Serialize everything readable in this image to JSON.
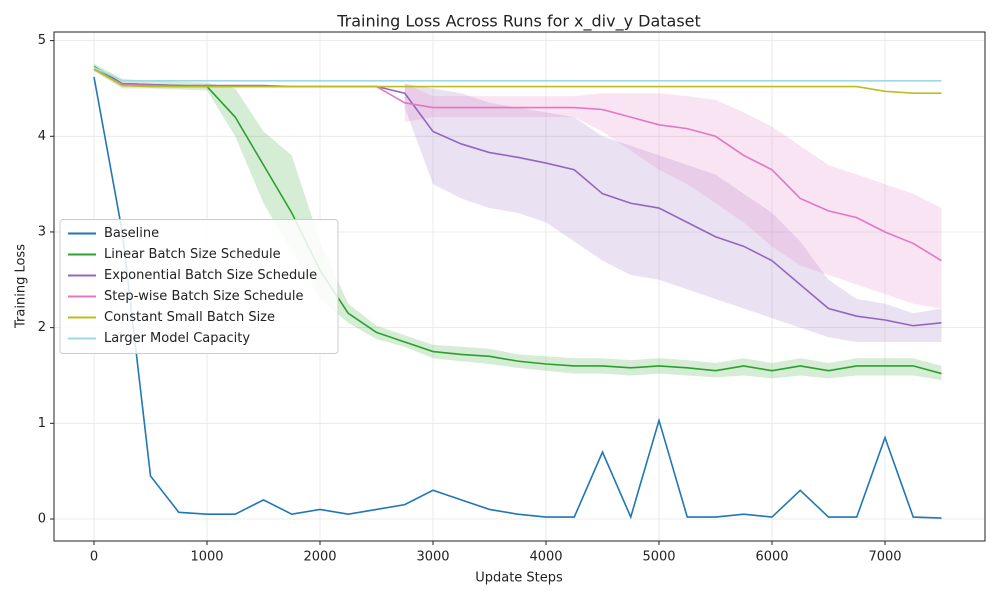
{
  "chart_data": {
    "type": "line",
    "title": "Training Loss Across Runs for x_div_y Dataset",
    "xlabel": "Update Steps",
    "ylabel": "Training Loss",
    "x": [
      0,
      250,
      500,
      750,
      1000,
      1250,
      1500,
      1750,
      2000,
      2250,
      2500,
      2750,
      3000,
      3250,
      3500,
      3750,
      4000,
      4250,
      4500,
      4750,
      5000,
      5250,
      5500,
      5750,
      6000,
      6250,
      6500,
      6750,
      7000,
      7250,
      7500
    ],
    "xlim": [
      -354,
      7885
    ],
    "ylim": [
      -0.23,
      5.09
    ],
    "xticks": [
      0,
      1000,
      2000,
      3000,
      4000,
      5000,
      6000,
      7000
    ],
    "yticks": [
      0,
      1,
      2,
      3,
      4,
      5
    ],
    "grid": true,
    "legend": "center left",
    "series": [
      {
        "name": "Baseline",
        "color": "#1f77b4",
        "values": [
          4.62,
          3.0,
          0.45,
          0.07,
          0.05,
          0.05,
          0.2,
          0.05,
          0.1,
          0.05,
          0.1,
          0.15,
          0.3,
          0.2,
          0.1,
          0.05,
          0.02,
          0.02,
          0.7,
          0.02,
          1.03,
          0.02,
          0.02,
          0.05,
          0.02,
          0.3,
          0.02,
          0.02,
          0.85,
          0.02,
          0.01
        ]
      },
      {
        "name": "Linear Batch Size Schedule",
        "color": "#2ca02c",
        "values": [
          4.73,
          4.55,
          4.54,
          4.53,
          4.52,
          4.2,
          3.7,
          3.2,
          2.6,
          2.15,
          1.95,
          1.85,
          1.75,
          1.72,
          1.7,
          1.65,
          1.62,
          1.6,
          1.6,
          1.58,
          1.6,
          1.58,
          1.55,
          1.6,
          1.55,
          1.6,
          1.55,
          1.6,
          1.6,
          1.6,
          1.52
        ],
        "lower": [
          4.68,
          4.5,
          4.5,
          4.49,
          4.48,
          4.0,
          3.3,
          2.8,
          2.3,
          2.05,
          1.88,
          1.8,
          1.68,
          1.65,
          1.62,
          1.58,
          1.55,
          1.52,
          1.52,
          1.5,
          1.52,
          1.5,
          1.48,
          1.5,
          1.47,
          1.5,
          1.47,
          1.5,
          1.5,
          1.5,
          1.45
        ],
        "upper": [
          4.76,
          4.6,
          4.58,
          4.57,
          4.56,
          4.5,
          4.05,
          3.8,
          2.9,
          2.25,
          2.02,
          1.92,
          1.82,
          1.8,
          1.78,
          1.72,
          1.7,
          1.68,
          1.68,
          1.66,
          1.68,
          1.66,
          1.63,
          1.68,
          1.63,
          1.68,
          1.63,
          1.68,
          1.68,
          1.68,
          1.6
        ]
      },
      {
        "name": "Exponential Batch Size Schedule",
        "color": "#9467bd",
        "values": [
          4.7,
          4.55,
          4.54,
          4.53,
          4.53,
          4.53,
          4.53,
          4.52,
          4.52,
          4.52,
          4.52,
          4.45,
          4.05,
          3.92,
          3.83,
          3.78,
          3.72,
          3.65,
          3.4,
          3.3,
          3.25,
          3.1,
          2.95,
          2.85,
          2.7,
          2.45,
          2.2,
          2.12,
          2.08,
          2.02,
          2.05
        ],
        "lower": [
          null,
          null,
          null,
          null,
          null,
          null,
          null,
          null,
          null,
          null,
          null,
          4.3,
          3.5,
          3.35,
          3.25,
          3.2,
          3.1,
          2.9,
          2.7,
          2.55,
          2.5,
          2.4,
          2.3,
          2.2,
          2.1,
          2.0,
          1.9,
          1.85,
          1.85,
          1.85,
          1.85
        ],
        "upper": [
          null,
          null,
          null,
          null,
          null,
          null,
          null,
          null,
          null,
          null,
          null,
          4.55,
          4.5,
          4.45,
          4.35,
          4.3,
          4.25,
          4.2,
          4.0,
          3.9,
          3.8,
          3.7,
          3.6,
          3.4,
          3.2,
          2.9,
          2.5,
          2.3,
          2.25,
          2.15,
          2.2
        ]
      },
      {
        "name": "Step-wise Batch Size Schedule",
        "color": "#e377c2",
        "values": [
          4.7,
          4.54,
          4.53,
          4.52,
          4.52,
          4.52,
          4.52,
          4.52,
          4.52,
          4.52,
          4.52,
          4.35,
          4.3,
          4.3,
          4.3,
          4.3,
          4.3,
          4.3,
          4.28,
          4.2,
          4.12,
          4.08,
          4.0,
          3.8,
          3.65,
          3.35,
          3.22,
          3.15,
          3.0,
          2.88,
          2.7
        ],
        "lower": [
          null,
          null,
          null,
          null,
          null,
          null,
          null,
          null,
          null,
          null,
          null,
          4.15,
          4.2,
          4.2,
          4.2,
          4.2,
          4.2,
          4.2,
          4.05,
          3.85,
          3.65,
          3.5,
          3.3,
          3.1,
          2.85,
          2.65,
          2.55,
          2.45,
          2.35,
          2.25,
          2.2
        ],
        "upper": [
          null,
          null,
          null,
          null,
          null,
          null,
          null,
          null,
          null,
          null,
          null,
          4.55,
          4.42,
          4.42,
          4.42,
          4.42,
          4.42,
          4.42,
          4.45,
          4.45,
          4.45,
          4.42,
          4.38,
          4.25,
          4.1,
          3.9,
          3.7,
          3.6,
          3.5,
          3.4,
          3.25
        ]
      },
      {
        "name": "Constant Small Batch Size",
        "color": "#bcbd22",
        "values": [
          4.7,
          4.53,
          4.52,
          4.52,
          4.52,
          4.52,
          4.52,
          4.52,
          4.52,
          4.52,
          4.52,
          4.52,
          4.52,
          4.52,
          4.52,
          4.52,
          4.52,
          4.52,
          4.52,
          4.52,
          4.52,
          4.52,
          4.52,
          4.52,
          4.52,
          4.52,
          4.52,
          4.52,
          4.47,
          4.45,
          4.45
        ]
      },
      {
        "name": "Larger Model Capacity",
        "color": "#9edae5",
        "values": [
          4.72,
          4.58,
          4.58,
          4.58,
          4.58,
          4.58,
          4.58,
          4.58,
          4.58,
          4.58,
          4.58,
          4.58,
          4.58,
          4.58,
          4.58,
          4.58,
          4.58,
          4.58,
          4.58,
          4.58,
          4.58,
          4.58,
          4.58,
          4.58,
          4.58,
          4.58,
          4.58,
          4.58,
          4.58,
          4.58,
          4.58
        ]
      }
    ]
  }
}
